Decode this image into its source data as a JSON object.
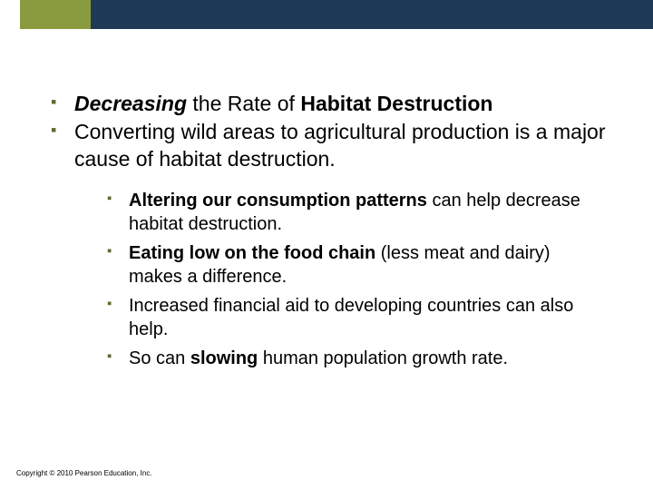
{
  "colors": {
    "olive": "#8a9a3f",
    "navy": "#1f3a57",
    "bullet": "#5b6b2f",
    "background": "#ffffff",
    "text": "#000000"
  },
  "outer": [
    {
      "lead_bi": "Decreasing",
      "mid": " the Rate of ",
      "tail_b": "Habitat Destruction"
    },
    {
      "plain": "Converting wild areas to agricultural production is a major cause of habitat destruction."
    }
  ],
  "inner": [
    {
      "lead_b": "Altering our consumption patterns",
      "rest": " can help decrease habitat destruction."
    },
    {
      "lead_b": "Eating low on the food chain",
      "rest": " (less meat and dairy) makes a difference."
    },
    {
      "rest": "Increased financial aid to developing countries can also help."
    },
    {
      "pre": "So can ",
      "mid_b": "slowing",
      "rest": " human population growth rate."
    }
  ],
  "copyright": "Copyright © 2010 Pearson Education, Inc."
}
